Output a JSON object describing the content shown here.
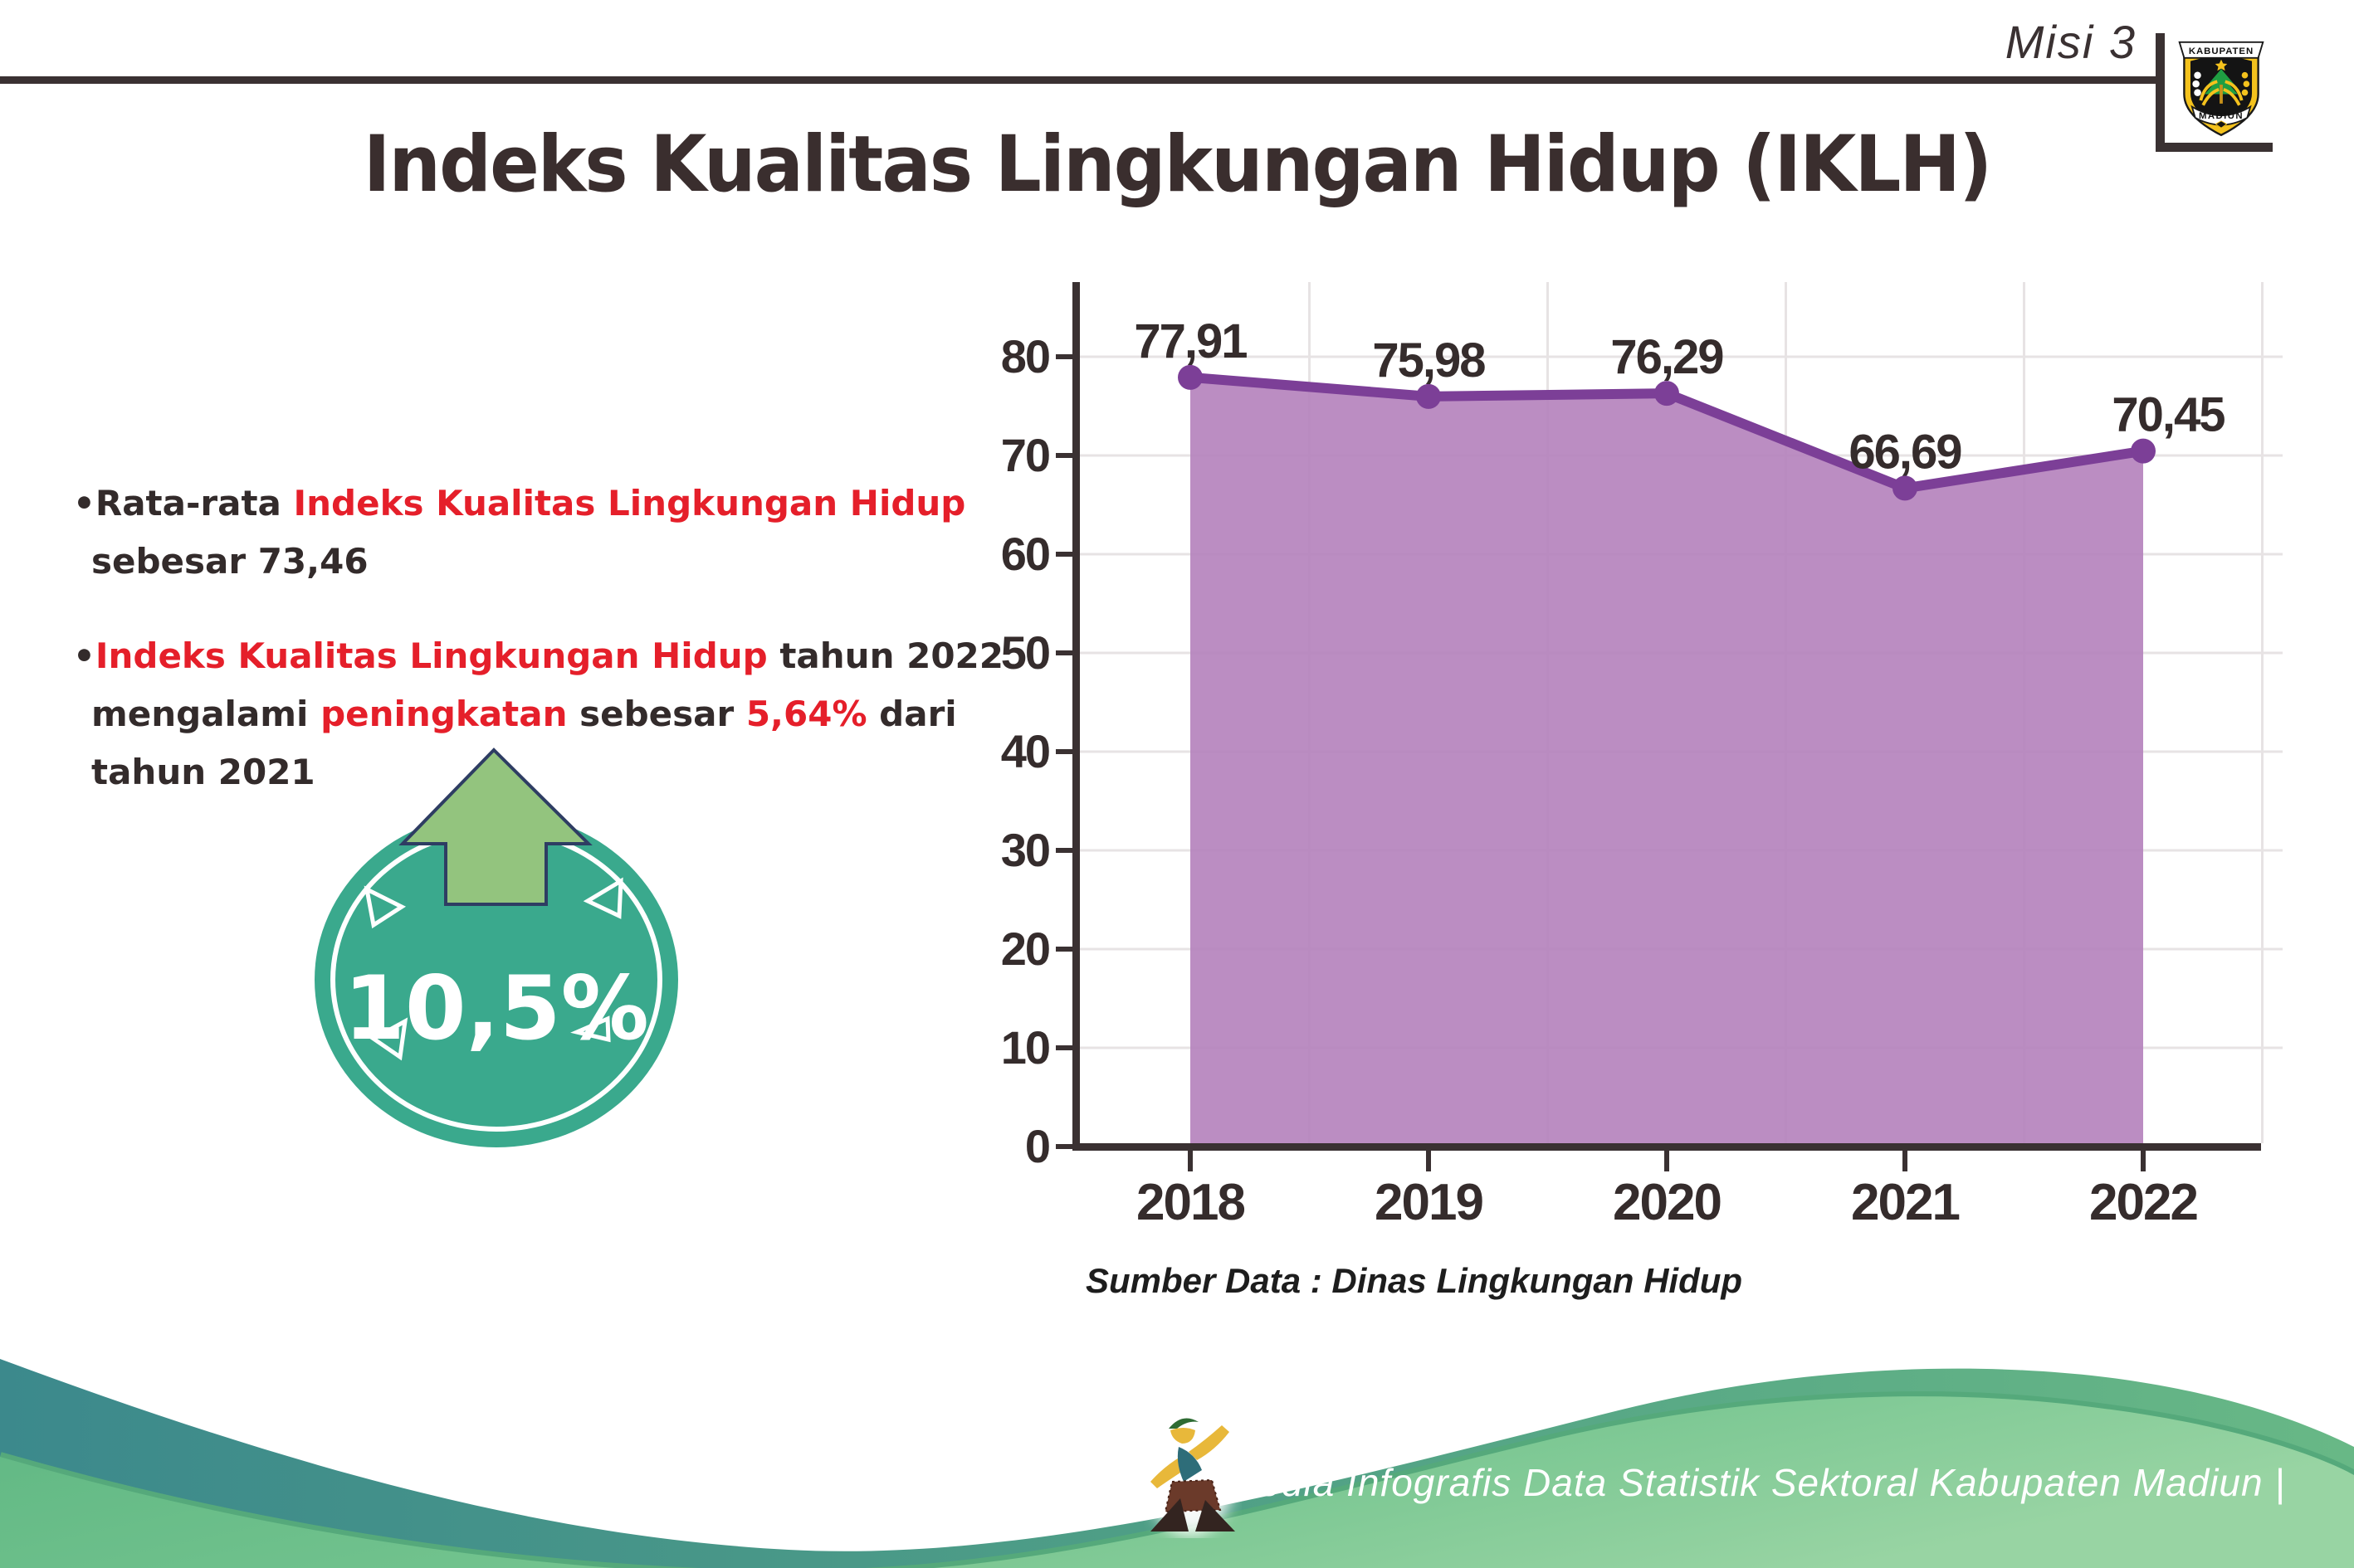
{
  "header": {
    "misi": "Misi 3",
    "title": "Indeks Kualitas Lingkungan Hidup (IKLH)",
    "logo_top": "KABUPATEN",
    "logo_bottom": "MADIUN"
  },
  "bullets": {
    "marker": "•",
    "b1": {
      "l1_dark": "Rata-rata ",
      "l1_red": "Indeks Kualitas Lingkungan Hidup",
      "l2": "sebesar 73,46"
    },
    "b2": {
      "l1_red": "Indeks Kualitas Lingkungan Hidup",
      "l1_dark": " tahun 2022",
      "l2_d1": "mengalami ",
      "l2_r1": "peningkatan",
      "l2_d2": " sebesar ",
      "l2_r2": "5,64%",
      "l2_d3": " dari",
      "l3": "tahun 2021"
    }
  },
  "badge": {
    "value": "10,5%",
    "arrow_icon": "arrow-up-icon"
  },
  "chart_data": {
    "type": "area",
    "title": "",
    "categories": [
      "2018",
      "2019",
      "2020",
      "2021",
      "2022"
    ],
    "values": [
      77.91,
      75.98,
      76.29,
      66.69,
      70.45
    ],
    "value_labels": [
      "77,91",
      "75,98",
      "76,29",
      "66,69",
      "70,45"
    ],
    "y_ticks": [
      0,
      10,
      20,
      30,
      40,
      50,
      60,
      70,
      80
    ],
    "ylim": [
      0,
      84
    ],
    "xlabel": "",
    "ylabel": "",
    "grid": true,
    "legend_position": "none",
    "source": "Sumber Data : Dinas Lingkungan Hidup",
    "line_color": "#7c3f97",
    "marker_color": "#7c3f97",
    "fill_color": "#b583bd",
    "grid_color": "#e7e3e4",
    "axis_color": "#3a3132",
    "label_color": "#352c2c"
  },
  "footer": {
    "text": "Media Infografis Data Statistik Sektoral Kabupaten Madiun |"
  },
  "colors": {
    "dark_text": "#3a3132",
    "red_text": "#e51f2a",
    "badge_teal": "#3aa98d",
    "arrow_green": "#93c47e",
    "arrow_outline": "#2e3d63",
    "footer_teal": "#3c898c",
    "footer_green": "#6fc08c",
    "logo_yellow": "#f4c21d"
  }
}
